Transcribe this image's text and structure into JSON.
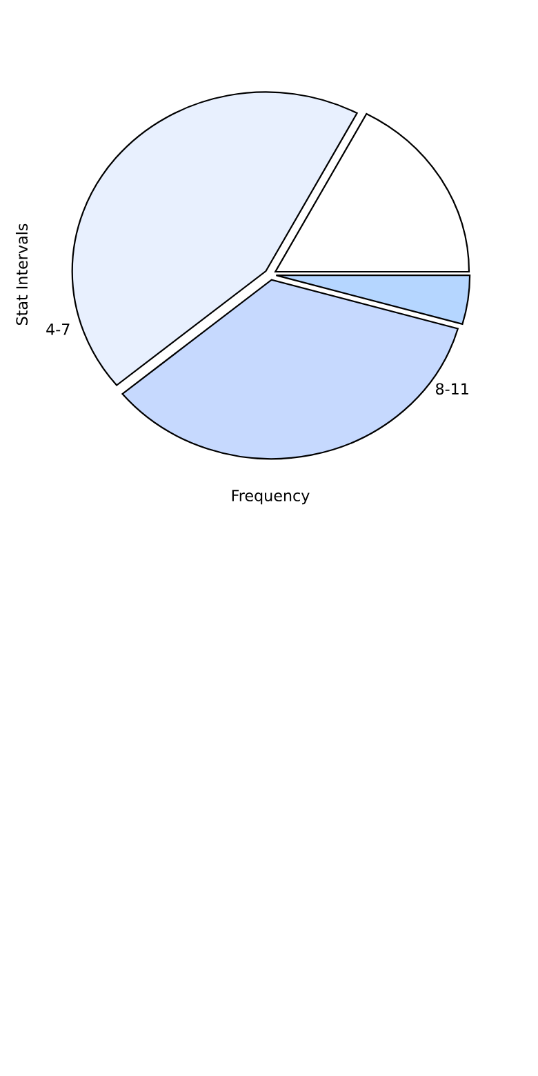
{
  "chart_data": {
    "type": "pie",
    "xlabel": "Frequency",
    "ylabel": "Stat Intervals",
    "categories": [
      null,
      "4-7",
      "8-11",
      null
    ],
    "values": [
      17.2,
      43.8,
      34.6,
      4.4
    ],
    "colors": [
      "#ffffff",
      "#e8f0fe",
      "#c6d9fe",
      "#b5d6ff"
    ]
  }
}
